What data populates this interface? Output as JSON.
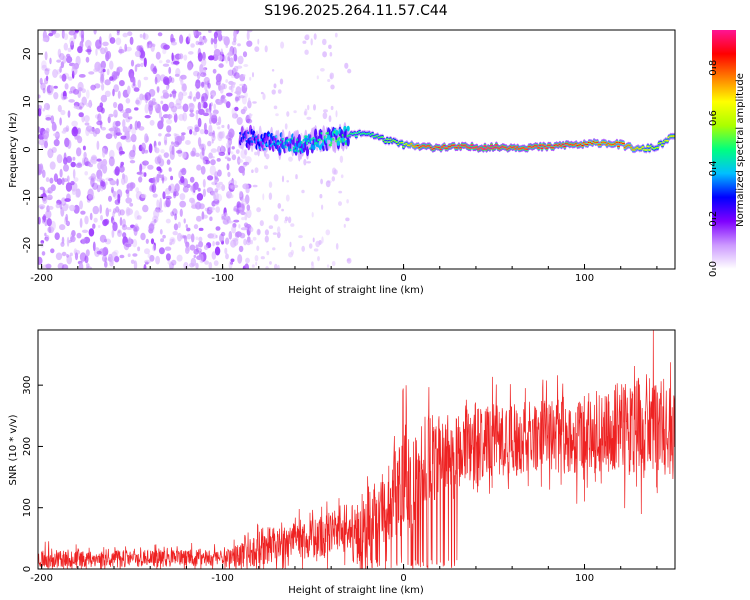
{
  "title": "S196.2025.264.11.57.C44",
  "chart_data": [
    {
      "type": "heatmap",
      "name": "spectrogram",
      "xlabel": "Height of straight line (km)",
      "ylabel": "Frequency (Hz)",
      "xlim": [
        -202,
        150
      ],
      "ylim": [
        -25,
        25
      ],
      "xticks": [
        -200,
        -100,
        0,
        100
      ],
      "yticks": [
        20,
        10,
        0,
        -10,
        -20
      ],
      "colorbar": {
        "label": "Normalized spectral amplitude",
        "range": [
          0,
          0.95
        ],
        "ticks": [
          0.0,
          0.2,
          0.4,
          0.6,
          0.8
        ],
        "colors": [
          "#ffffff",
          "#cc99ff",
          "#7f00ff",
          "#0000ff",
          "#00bfff",
          "#00ff7f",
          "#aaff00",
          "#ffff00",
          "#ff8000",
          "#ff0000",
          "#ff1493"
        ]
      },
      "noise_region_x": [
        -202,
        -85
      ],
      "noise_amplitude": 0.2,
      "sparse_region_x": [
        -110,
        -30
      ],
      "ridge": {
        "x": [
          -90,
          -80,
          -70,
          -60,
          -50,
          -40,
          -30,
          -20,
          -10,
          0,
          10,
          20,
          30,
          40,
          50,
          60,
          70,
          80,
          90,
          100,
          110,
          120,
          130,
          140,
          150
        ],
        "frequency": [
          3,
          2,
          1.5,
          1,
          1.5,
          2,
          3,
          3.5,
          2,
          1,
          0.5,
          0.5,
          0.5,
          0.5,
          0.5,
          0.5,
          0.5,
          0.5,
          1,
          1,
          1.5,
          1,
          0,
          0.5,
          3
        ],
        "amplitude": [
          0.3,
          0.35,
          0.4,
          0.45,
          0.45,
          0.5,
          0.5,
          0.5,
          0.55,
          0.6,
          0.9,
          0.9,
          0.9,
          0.95,
          0.95,
          0.9,
          0.9,
          0.9,
          0.9,
          0.85,
          0.8,
          0.85,
          0.7,
          0.6,
          0.7
        ]
      }
    },
    {
      "type": "line",
      "name": "snr",
      "xlabel": "Height of straight line (km)",
      "ylabel": "SNR (10 * v/v)",
      "xlim": [
        -202,
        150
      ],
      "ylim": [
        0,
        390
      ],
      "xticks": [
        -200,
        -100,
        0,
        100
      ],
      "yticks": [
        0,
        100,
        200,
        300
      ],
      "color": "#ee2222",
      "series": [
        {
          "name": "SNR",
          "x": [
            -200,
            -180,
            -160,
            -140,
            -120,
            -100,
            -90,
            -80,
            -70,
            -60,
            -50,
            -40,
            -30,
            -20,
            -10,
            0,
            10,
            20,
            30,
            40,
            50,
            60,
            70,
            80,
            90,
            100,
            110,
            120,
            130,
            140,
            150
          ],
          "mean": [
            18,
            17,
            17,
            17,
            18,
            20,
            22,
            35,
            42,
            45,
            50,
            55,
            60,
            80,
            110,
            150,
            175,
            185,
            195,
            200,
            210,
            210,
            215,
            215,
            220,
            220,
            225,
            230,
            230,
            230,
            225
          ],
          "spread": [
            30,
            25,
            25,
            25,
            25,
            30,
            35,
            55,
            55,
            55,
            60,
            70,
            80,
            110,
            140,
            180,
            140,
            120,
            110,
            110,
            110,
            110,
            110,
            110,
            120,
            120,
            130,
            140,
            150,
            150,
            130
          ],
          "peak": 390
        }
      ]
    }
  ]
}
